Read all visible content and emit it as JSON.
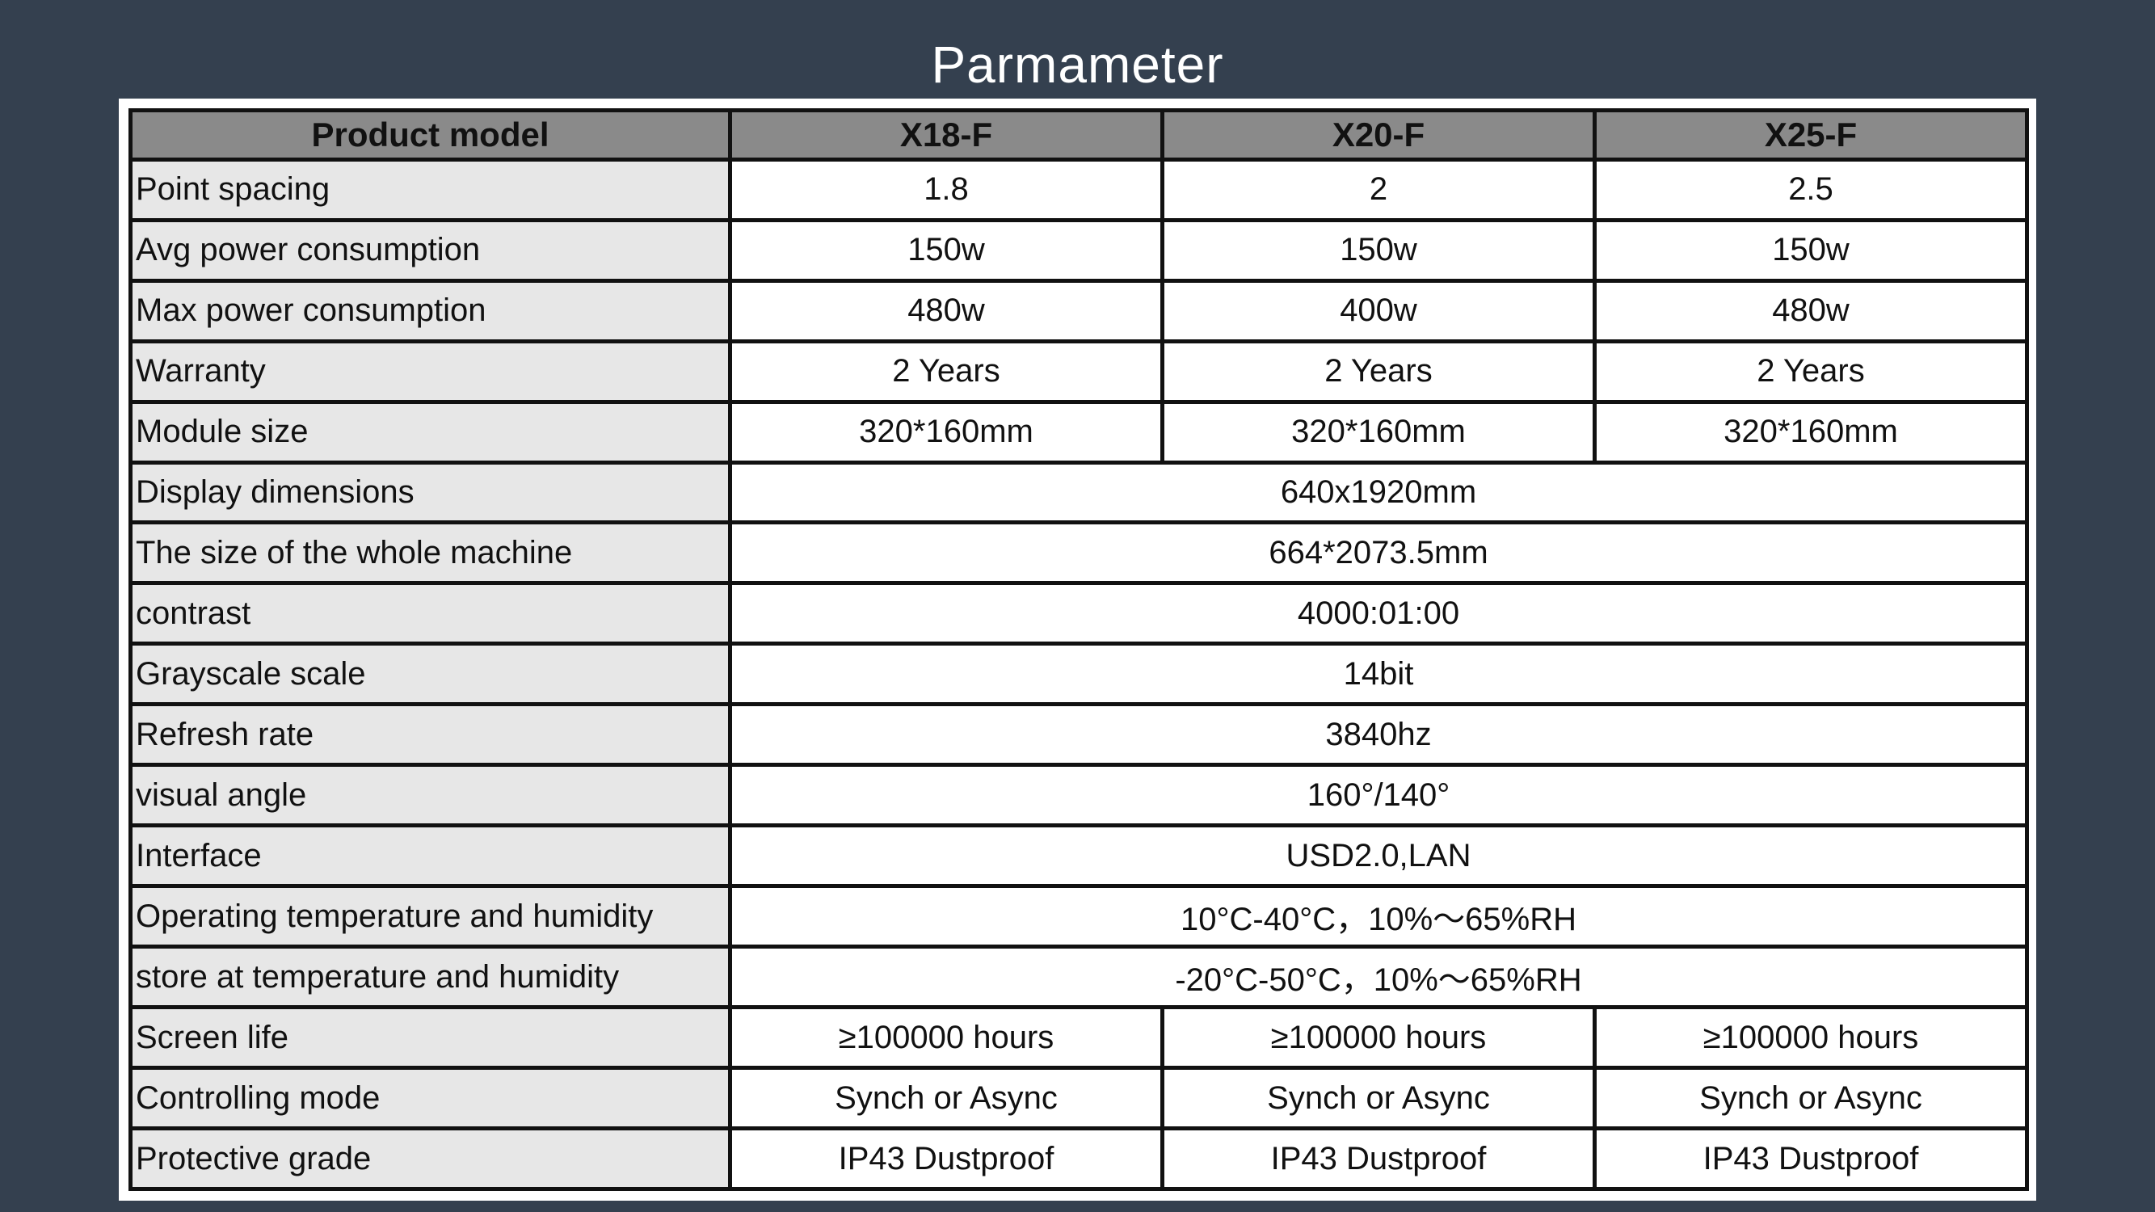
{
  "title": "Parmameter",
  "table": {
    "header": {
      "label": "Product model",
      "models": [
        "X18-F",
        "X20-F",
        "X25-F"
      ]
    },
    "rows": [
      {
        "label": "Point spacing",
        "values": [
          "1.8",
          "2",
          "2.5"
        ]
      },
      {
        "label": "Avg power consumption",
        "values": [
          "150w",
          "150w",
          "150w"
        ]
      },
      {
        "label": "Max power consumption",
        "values": [
          "480w",
          "400w",
          "480w"
        ]
      },
      {
        "label": "Warranty",
        "values": [
          "2 Years",
          "2 Years",
          "2 Years"
        ]
      },
      {
        "label": "Module size",
        "values": [
          "320*160mm",
          "320*160mm",
          "320*160mm"
        ]
      },
      {
        "label": "Display dimensions",
        "value": "640x1920mm"
      },
      {
        "label": "The size of the whole machine",
        "value": "664*2073.5mm"
      },
      {
        "label": "contrast",
        "value": "4000:01:00"
      },
      {
        "label": "Grayscale scale",
        "value": "14bit"
      },
      {
        "label": "Refresh rate",
        "value": "3840hz"
      },
      {
        "label": "visual angle",
        "value": "160°/140°"
      },
      {
        "label": "Interface",
        "value": "USD2.0,LAN"
      },
      {
        "label": "Operating temperature and humidity",
        "value": "10°C-40°C，10%～65%RH"
      },
      {
        "label": "store at temperature and humidity",
        "value": "-20°C-50°C，10%～65%RH"
      },
      {
        "label": "Screen life",
        "values": [
          "≥100000 hours",
          "≥100000 hours",
          "≥100000 hours"
        ]
      },
      {
        "label": "Controlling mode",
        "values": [
          "Synch or Async",
          "Synch or Async",
          "Synch or Async"
        ]
      },
      {
        "label": "Protective grade",
        "values": [
          "IP43 Dustproof",
          "IP43 Dustproof",
          "IP43 Dustproof"
        ]
      }
    ]
  }
}
